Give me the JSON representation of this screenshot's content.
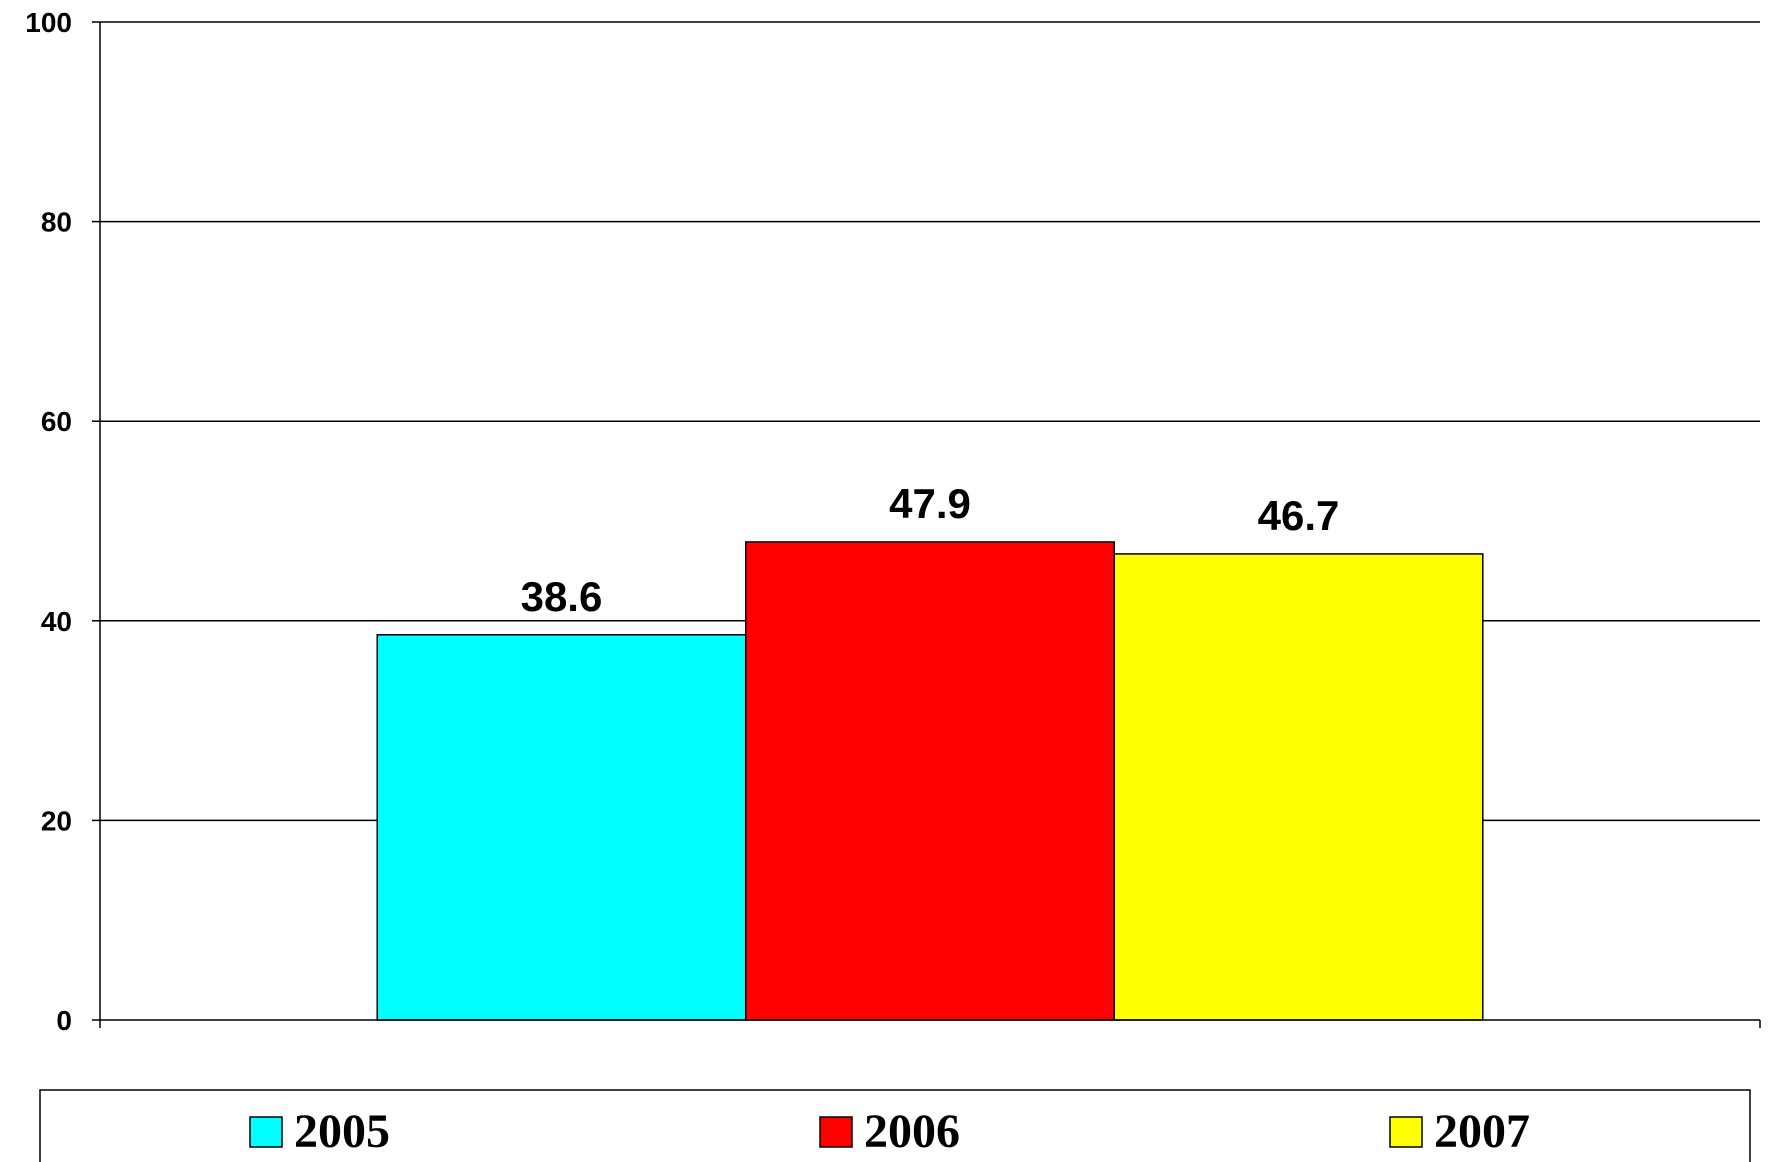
{
  "chart_data": {
    "type": "bar",
    "title": "",
    "xlabel": "",
    "ylabel": "",
    "ylim": [
      0,
      100
    ],
    "yticks": [
      0,
      20,
      40,
      60,
      80,
      100
    ],
    "grid": true,
    "categories": [
      ""
    ],
    "series": [
      {
        "name": "2005",
        "values": [
          38.6
        ],
        "color": "#00FFFF"
      },
      {
        "name": "2006",
        "values": [
          47.9
        ],
        "color": "#FF0000"
      },
      {
        "name": "2007",
        "values": [
          46.7
        ],
        "color": "#FFFF00"
      }
    ],
    "data_labels": [
      "38.6",
      "47.9",
      "46.7"
    ],
    "legend": {
      "position": "bottom",
      "entries": [
        "2005",
        "2006",
        "2007"
      ]
    }
  }
}
